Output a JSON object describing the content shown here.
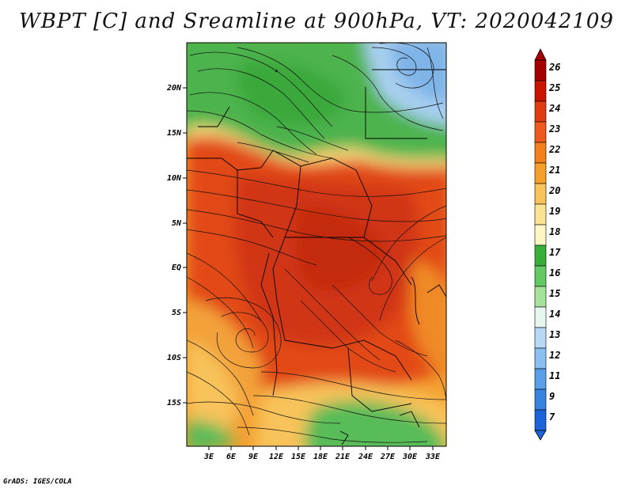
{
  "title": "WBPT [C] and Sreamline at 900hPa, VT: 2020042109",
  "footer": "GrADS: IGES/COLA",
  "map": {
    "lon_ticks": [
      "3E",
      "6E",
      "9E",
      "12E",
      "15E",
      "18E",
      "21E",
      "24E",
      "27E",
      "30E",
      "33E"
    ],
    "lat_ticks": [
      "20N",
      "15N",
      "10N",
      "5N",
      "EQ",
      "5S",
      "10S",
      "15S"
    ]
  },
  "colorbar": {
    "labels": [
      "26",
      "25",
      "24",
      "23",
      "22",
      "21",
      "20",
      "19",
      "18",
      "17",
      "16",
      "15",
      "14",
      "13",
      "12",
      "11",
      "9",
      "7"
    ],
    "colors": [
      "#a50000",
      "#c81400",
      "#e03c14",
      "#ee5a1e",
      "#f2801e",
      "#f4a02a",
      "#f8c35a",
      "#fce394",
      "#fef6c4",
      "#3aae3a",
      "#64c864",
      "#a6e29c",
      "#e8f6f0",
      "#b8d8f6",
      "#8cbef0",
      "#5a9ee8",
      "#3a82e0",
      "#1e64d8"
    ]
  },
  "colors": {
    "tropical_hot": "#e04a14",
    "moderate": "#f2a030",
    "cool_green": "#58bc58",
    "cold_blue": "#9cc8ee"
  }
}
